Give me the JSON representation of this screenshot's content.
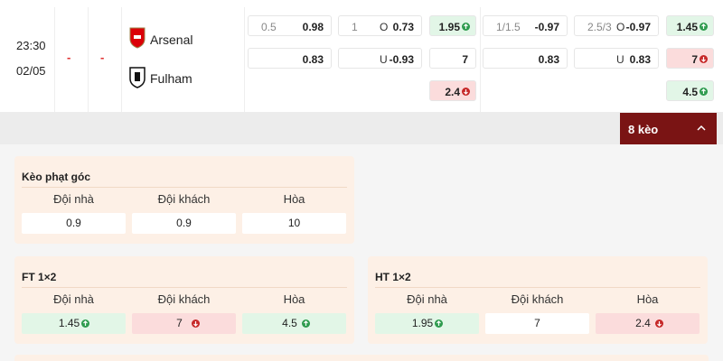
{
  "match": {
    "time": "23:30",
    "date": "02/05",
    "score_home": "-",
    "score_away": "-",
    "home": "Arsenal",
    "away": "Fulham",
    "odds": [
      [
        {
          "line": 0.5,
          "value": 0.98
        },
        {
          "line": 1,
          "side": "O",
          "value": 0.73
        },
        {
          "value": 1.95,
          "trend": "up"
        },
        {
          "line": "1/1.5",
          "value": -0.97
        },
        {
          "line": "2.5/3",
          "side": "O",
          "value": -0.97
        },
        {
          "value": 1.45,
          "trend": "up"
        }
      ],
      [
        {
          "value": 0.83
        },
        {
          "side": "U",
          "value": -0.93
        },
        {
          "value": 7
        },
        {
          "value": 0.83
        },
        {
          "side": "U",
          "value": 0.83
        },
        {
          "value": 7,
          "trend": "down"
        }
      ],
      [
        null,
        null,
        {
          "value": 2.4,
          "trend": "down"
        },
        null,
        null,
        {
          "value": 4.5,
          "trend": "up"
        }
      ]
    ],
    "more_button": "8 kèo"
  },
  "markets": [
    {
      "title": "Kèo phạt góc",
      "headers": [
        "Đội nhà",
        "Đội khách",
        "Hòa"
      ],
      "values": [
        {
          "value": 0.9
        },
        {
          "value": 0.9
        },
        {
          "value": 10
        }
      ]
    },
    {
      "title": "FT 1×2",
      "headers": [
        "Đội nhà",
        "Đội khách",
        "Hòa"
      ],
      "values": [
        {
          "value": 1.45,
          "trend": "up"
        },
        {
          "value": 7,
          "trend": "down"
        },
        {
          "value": 4.5,
          "trend": "up"
        }
      ]
    },
    {
      "title": "HT 1×2",
      "headers": [
        "Đội nhà",
        "Đội khách",
        "Hòa"
      ],
      "values": [
        {
          "value": 1.95,
          "trend": "up"
        },
        {
          "value": 7
        },
        {
          "value": 2.4,
          "trend": "down"
        }
      ]
    }
  ]
}
